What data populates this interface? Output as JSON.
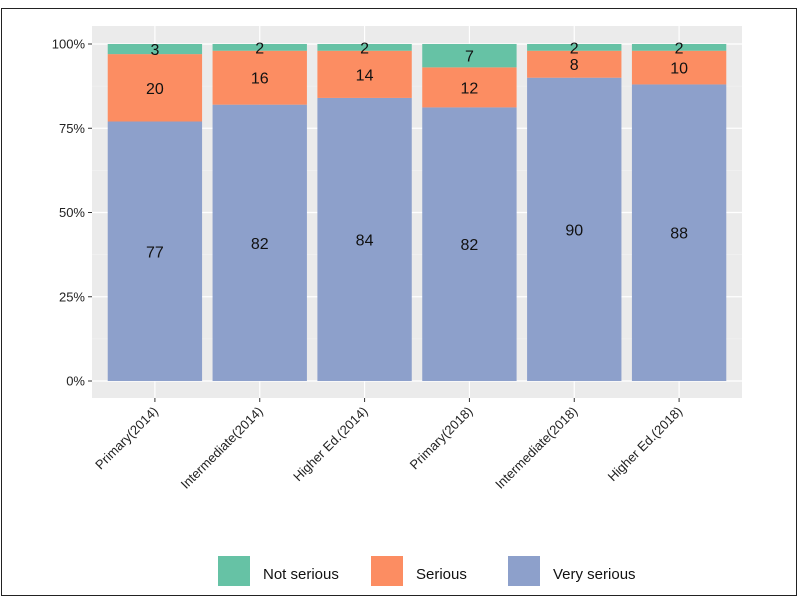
{
  "chart_data": {
    "type": "bar",
    "stacked": "percent",
    "categories": [
      "Primary(2014)",
      "Intermediate(2014)",
      "Higher Ed.(2014)",
      "Primary(2018)",
      "Intermediate(2018)",
      "Higher Ed.(2018)"
    ],
    "series": [
      {
        "name": "Very serious",
        "color": "#8da0cb",
        "values": [
          77,
          82,
          84,
          82,
          90,
          88
        ]
      },
      {
        "name": "Serious",
        "color": "#fc8d62",
        "values": [
          20,
          16,
          14,
          12,
          8,
          10
        ]
      },
      {
        "name": "Not serious",
        "color": "#66c2a5",
        "values": [
          3,
          2,
          2,
          7,
          2,
          2
        ]
      }
    ],
    "legend_order": [
      "Not serious",
      "Serious",
      "Very serious"
    ],
    "yticks": [
      "0%",
      "25%",
      "50%",
      "75%",
      "100%"
    ],
    "ylim": [
      0,
      1
    ],
    "grid": true,
    "legend_position": "bottom",
    "title": "",
    "xlabel": "",
    "ylabel": ""
  }
}
